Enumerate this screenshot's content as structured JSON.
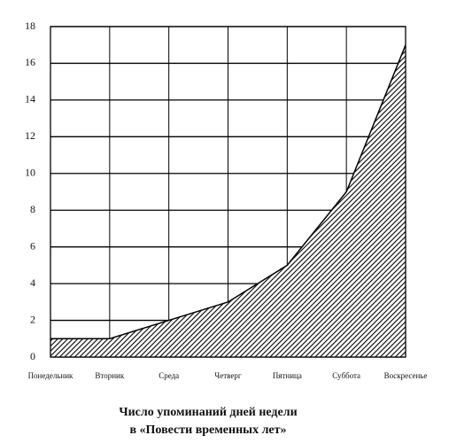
{
  "chart_data": {
    "type": "area",
    "title": "Число упоминаний дней недели",
    "subtitle": "в «Повести временных лет»",
    "categories": [
      "Понедельник",
      "Вторник",
      "Среда",
      "Четверг",
      "Пятница",
      "Суббота",
      "Воскресенье"
    ],
    "values": [
      1,
      1,
      2,
      3,
      5,
      9,
      17
    ],
    "color": "#000000",
    "ylim": [
      0,
      18
    ],
    "yticks": [
      0,
      2,
      4,
      6,
      8,
      10,
      12,
      14,
      16,
      18
    ],
    "grid": true
  }
}
